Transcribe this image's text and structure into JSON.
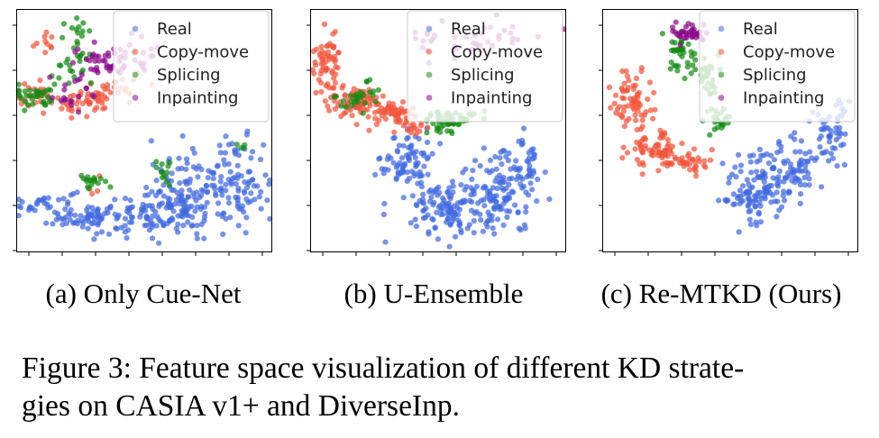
{
  "figure": {
    "caption": "Figure 3: Feature space visualization of different KD strategies on CASIA v1+ and DiverseInp.",
    "caption_line1": "Figure 3: Feature space visualization of different KD strate-",
    "caption_line2": "gies on CASIA v1+ and DiverseInp."
  },
  "colors": {
    "Real": "#4169e1",
    "Copy-move": "#f4553c",
    "Splicing": "#128a12",
    "Inpainting": "#8b0a8b"
  },
  "chart_data": [
    {
      "type": "scatter",
      "title": "",
      "subcaption": "(a) Only Cue-Net",
      "xlabel": "",
      "ylabel": "",
      "xlim": [
        0,
        100
      ],
      "ylim": [
        0,
        100
      ],
      "grid": false,
      "legend": [
        "Real",
        "Copy-move",
        "Splicing",
        "Inpainting"
      ],
      "legend_position": "top-right",
      "tick_labels_shown": false,
      "series": [
        {
          "name": "Real",
          "clusters": [
            {
              "x": 12,
              "y": 20,
              "sx": 6,
              "sy": 3,
              "n": 35
            },
            {
              "x": 30,
              "y": 14,
              "sx": 9,
              "sy": 3,
              "n": 70
            },
            {
              "x": 52,
              "y": 16,
              "sx": 8,
              "sy": 4,
              "n": 70
            },
            {
              "x": 70,
              "y": 24,
              "sx": 9,
              "sy": 8,
              "n": 140
            },
            {
              "x": 88,
              "y": 30,
              "sx": 5,
              "sy": 9,
              "n": 70
            }
          ]
        },
        {
          "name": "Copy-move",
          "clusters": [
            {
              "x": 8,
              "y": 63,
              "sx": 4,
              "sy": 3,
              "n": 25
            },
            {
              "x": 28,
              "y": 62,
              "sx": 6,
              "sy": 3,
              "n": 45
            },
            {
              "x": 38,
              "y": 68,
              "sx": 6,
              "sy": 6,
              "n": 20
            },
            {
              "x": 12,
              "y": 86,
              "sx": 4,
              "sy": 3,
              "n": 10
            },
            {
              "x": 30,
              "y": 28,
              "sx": 2,
              "sy": 2,
              "n": 4
            }
          ]
        },
        {
          "name": "Splicing",
          "clusters": [
            {
              "x": 8,
              "y": 65,
              "sx": 4,
              "sy": 3,
              "n": 35
            },
            {
              "x": 22,
              "y": 78,
              "sx": 6,
              "sy": 5,
              "n": 25
            },
            {
              "x": 28,
              "y": 30,
              "sx": 3,
              "sy": 1.5,
              "n": 18
            },
            {
              "x": 58,
              "y": 34,
              "sx": 2,
              "sy": 3,
              "n": 12
            },
            {
              "x": 88,
              "y": 44,
              "sx": 1,
              "sy": 1,
              "n": 4
            },
            {
              "x": 25,
              "y": 92,
              "sx": 3,
              "sy": 2,
              "n": 10
            }
          ]
        },
        {
          "name": "Inpainting",
          "clusters": [
            {
              "x": 34,
              "y": 78,
              "sx": 6,
              "sy": 3,
              "n": 40
            },
            {
              "x": 22,
              "y": 66,
              "sx": 5,
              "sy": 4,
              "n": 20
            },
            {
              "x": 46,
              "y": 82,
              "sx": 8,
              "sy": 5,
              "n": 20
            }
          ]
        }
      ]
    },
    {
      "type": "scatter",
      "title": "",
      "subcaption": "(b) U-Ensemble",
      "xlabel": "",
      "ylabel": "",
      "xlim": [
        0,
        100
      ],
      "ylim": [
        0,
        100
      ],
      "grid": false,
      "legend": [
        "Real",
        "Copy-move",
        "Splicing",
        "Inpainting"
      ],
      "legend_position": "top-right",
      "tick_labels_shown": false,
      "series": [
        {
          "name": "Real",
          "clusters": [
            {
              "x": 38,
              "y": 38,
              "sx": 5,
              "sy": 6,
              "n": 80
            },
            {
              "x": 52,
              "y": 18,
              "sx": 7,
              "sy": 6,
              "n": 110
            },
            {
              "x": 72,
              "y": 24,
              "sx": 8,
              "sy": 9,
              "n": 120
            },
            {
              "x": 84,
              "y": 36,
              "sx": 3,
              "sy": 6,
              "n": 40
            }
          ]
        },
        {
          "name": "Copy-move",
          "clusters": [
            {
              "x": 7,
              "y": 78,
              "sx": 3,
              "sy": 5,
              "n": 60
            },
            {
              "x": 16,
              "y": 62,
              "sx": 5,
              "sy": 3,
              "n": 70
            },
            {
              "x": 30,
              "y": 58,
              "sx": 6,
              "sy": 2.5,
              "n": 60
            },
            {
              "x": 40,
              "y": 50,
              "sx": 3,
              "sy": 2,
              "n": 15
            }
          ]
        },
        {
          "name": "Splicing",
          "clusters": [
            {
              "x": 18,
              "y": 63,
              "sx": 4,
              "sy": 2,
              "n": 25
            },
            {
              "x": 52,
              "y": 53,
              "sx": 5,
              "sy": 2.5,
              "n": 35
            },
            {
              "x": 60,
              "y": 55,
              "sx": 3,
              "sy": 1.5,
              "n": 15
            },
            {
              "x": 22,
              "y": 70,
              "sx": 1,
              "sy": 1,
              "n": 3
            }
          ]
        },
        {
          "name": "Inpainting",
          "clusters": [
            {
              "x": 46,
              "y": 86,
              "sx": 3,
              "sy": 3,
              "n": 10
            },
            {
              "x": 70,
              "y": 88,
              "sx": 10,
              "sy": 4,
              "n": 30
            }
          ]
        }
      ]
    },
    {
      "type": "scatter",
      "title": "",
      "subcaption": "(c) Re-MTKD (Ours)",
      "xlabel": "",
      "ylabel": "",
      "xlim": [
        0,
        100
      ],
      "ylim": [
        0,
        100
      ],
      "grid": false,
      "legend": [
        "Real",
        "Copy-move",
        "Splicing",
        "Inpainting"
      ],
      "legend_position": "top-right",
      "tick_labels_shown": false,
      "series": [
        {
          "name": "Real",
          "clusters": [
            {
              "x": 62,
              "y": 26,
              "sx": 7,
              "sy": 8,
              "n": 140
            },
            {
              "x": 76,
              "y": 36,
              "sx": 5,
              "sy": 5,
              "n": 50
            },
            {
              "x": 88,
              "y": 46,
              "sx": 4,
              "sy": 6,
              "n": 40
            },
            {
              "x": 94,
              "y": 58,
              "sx": 2,
              "sy": 3,
              "n": 12
            }
          ]
        },
        {
          "name": "Copy-move",
          "clusters": [
            {
              "x": 12,
              "y": 62,
              "sx": 4,
              "sy": 7,
              "n": 70
            },
            {
              "x": 20,
              "y": 42,
              "sx": 5,
              "sy": 4,
              "n": 60
            },
            {
              "x": 32,
              "y": 38,
              "sx": 5,
              "sy": 3,
              "n": 45
            }
          ]
        },
        {
          "name": "Splicing",
          "clusters": [
            {
              "x": 30,
              "y": 82,
              "sx": 3,
              "sy": 4,
              "n": 35
            },
            {
              "x": 40,
              "y": 74,
              "sx": 3,
              "sy": 3,
              "n": 25
            },
            {
              "x": 45,
              "y": 54,
              "sx": 2,
              "sy": 3,
              "n": 25
            },
            {
              "x": 42,
              "y": 66,
              "sx": 1.5,
              "sy": 2,
              "n": 8
            }
          ]
        },
        {
          "name": "Inpainting",
          "clusters": [
            {
              "x": 34,
              "y": 90,
              "sx": 4,
              "sy": 1.8,
              "n": 40
            }
          ]
        }
      ]
    }
  ]
}
